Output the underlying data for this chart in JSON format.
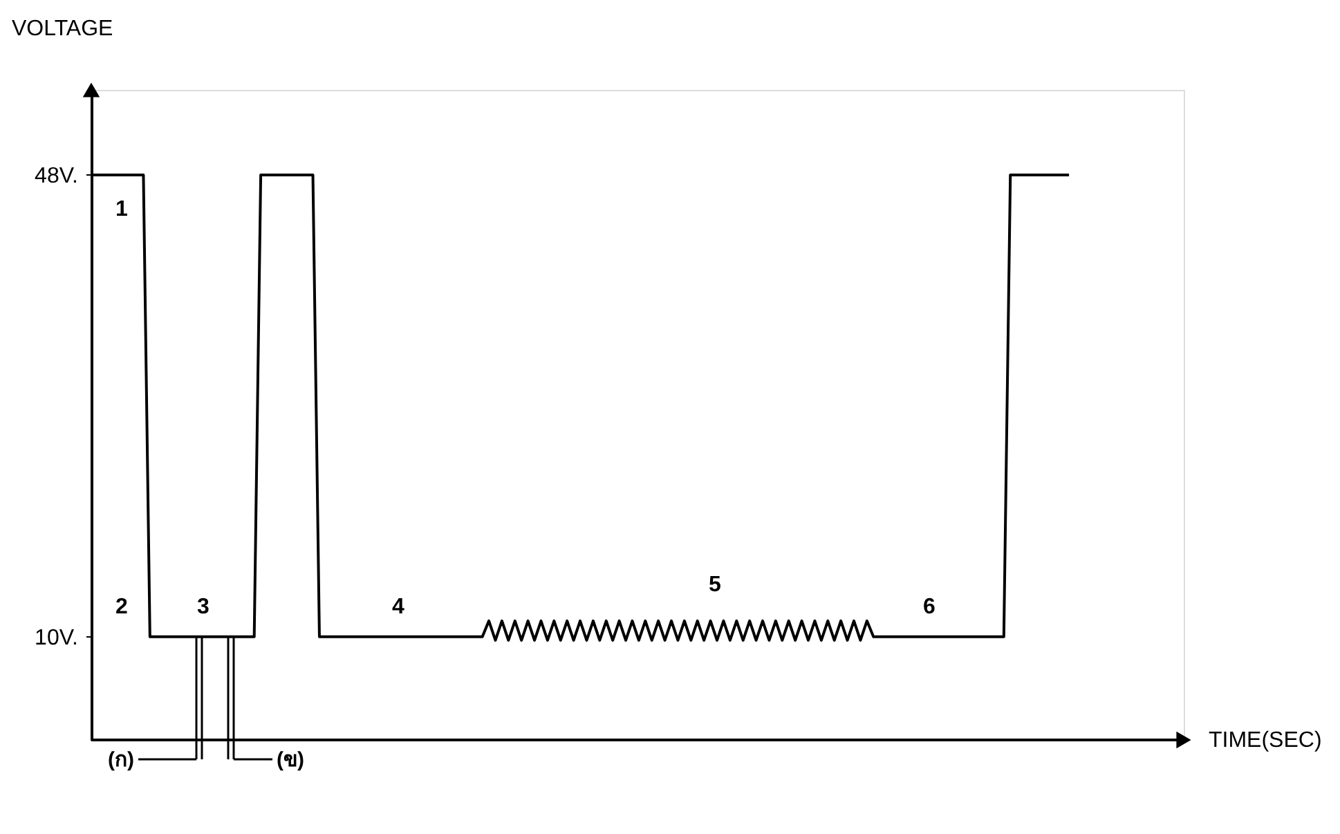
{
  "chart_data": {
    "type": "line",
    "ylabel": "VOLTAGE",
    "ylim": [
      1.5,
      55
    ],
    "yticks": [
      {
        "value": 10,
        "label": "10V."
      },
      {
        "value": 48,
        "label": "48V."
      }
    ],
    "tick_labels": "y",
    "grid": false,
    "marker": "none",
    "line_style": "solid",
    "categories": [
      null,
      null,
      null,
      null,
      null,
      null,
      null,
      null,
      null,
      null,
      null,
      null,
      null,
      null,
      null,
      null,
      null,
      null,
      null,
      null,
      null,
      null,
      null,
      null,
      null,
      null,
      null,
      null,
      null,
      null,
      null,
      null,
      null,
      null,
      null,
      null,
      null,
      null,
      null,
      null,
      null,
      null,
      null,
      null,
      null,
      null,
      null,
      null,
      null,
      null,
      null,
      null,
      null,
      null,
      null,
      null,
      null,
      null,
      null,
      null,
      null,
      null,
      null,
      null,
      null,
      null,
      null,
      null,
      null,
      null,
      null,
      null,
      null,
      null,
      null,
      null,
      null,
      null,
      null,
      null,
      null,
      null,
      null,
      null,
      null,
      null,
      null,
      null,
      null,
      null,
      null,
      null,
      null,
      null,
      null,
      null,
      null,
      null,
      null,
      null,
      null,
      null,
      null,
      null,
      null,
      null,
      null,
      null,
      null,
      null,
      null,
      null,
      null,
      null,
      null,
      null,
      null,
      null,
      null,
      null,
      null,
      null,
      null,
      null,
      null,
      null,
      null,
      null,
      null,
      null,
      null,
      null,
      null,
      null,
      null,
      null,
      null,
      null,
      null,
      null,
      null,
      null,
      null,
      null,
      null,
      null,
      null,
      null,
      null,
      null,
      null
    ],
    "series": [
      {
        "color": "#000000",
        "values": [
          48,
          48,
          48,
          48,
          48,
          48,
          48,
          48,
          48,
          10,
          10,
          10,
          10,
          10,
          10,
          10,
          10,
          10,
          10,
          10,
          10,
          10,
          10,
          10,
          10,
          10,
          48,
          48,
          48,
          48,
          48,
          48,
          48,
          48,
          48,
          10,
          10,
          10,
          10,
          10,
          10,
          10,
          10,
          10,
          10,
          10,
          10,
          10,
          10,
          10,
          10,
          10,
          10,
          10,
          10,
          10,
          10,
          10,
          10,
          10,
          10,
          11.3,
          9.7,
          11.3,
          9.7,
          11.3,
          9.7,
          11.3,
          9.7,
          11.3,
          9.7,
          11.3,
          9.7,
          11.3,
          9.7,
          11.3,
          9.7,
          11.3,
          9.7,
          11.3,
          9.7,
          11.3,
          9.7,
          11.3,
          9.7,
          11.3,
          9.7,
          11.3,
          9.7,
          11.3,
          9.7,
          11.3,
          9.7,
          11.3,
          9.7,
          11.3,
          9.7,
          11.3,
          9.7,
          11.3,
          9.7,
          11.3,
          9.7,
          11.3,
          9.7,
          11.3,
          9.7,
          11.3,
          9.7,
          11.3,
          9.7,
          11.3,
          9.7,
          11.3,
          9.7,
          11.3,
          9.7,
          11.3,
          9.7,
          11.3,
          10,
          10,
          10,
          10,
          10,
          10,
          10,
          10,
          10,
          10,
          10,
          10,
          10,
          10,
          10,
          10,
          10,
          10,
          10,
          10,
          10,
          48,
          48,
          48,
          48,
          48,
          48,
          48,
          48,
          48,
          48
        ]
      }
    ],
    "annotations": [
      "1",
      "2",
      "3",
      "4",
      "5",
      "6",
      "(ก)",
      "(ข)",
      "TIME(SEC)"
    ]
  }
}
